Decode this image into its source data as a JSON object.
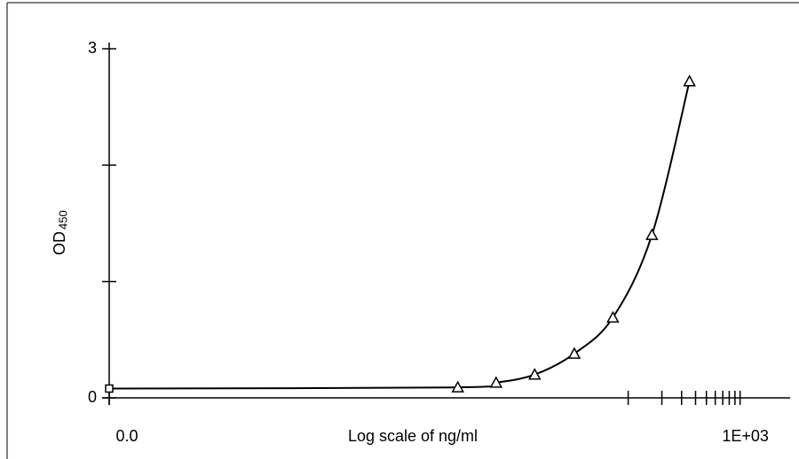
{
  "chart_data": {
    "type": "line",
    "x_label": "Log scale of ng/ml",
    "y_label": "OD",
    "y_label_sub": "450",
    "x_log": true,
    "xlim": [
      0.0023,
      2800
    ],
    "ylim": [
      0,
      3
    ],
    "yticks": [
      0,
      {
        "value": 1,
        "label": null
      },
      {
        "value": 2,
        "label": null
      },
      3
    ],
    "xticks": [
      {
        "value": 0.0023,
        "label": "0.0"
      },
      {
        "value": 100,
        "label": null
      },
      {
        "value": 200,
        "label": null
      },
      {
        "value": 300,
        "label": null
      },
      {
        "value": 400,
        "label": null
      },
      {
        "value": 500,
        "label": null
      },
      {
        "value": 600,
        "label": null
      },
      {
        "value": 700,
        "label": null
      },
      {
        "value": 800,
        "label": null
      },
      {
        "value": 900,
        "label": null
      },
      {
        "value": 1000,
        "label": "1E+03"
      }
    ],
    "series": [
      {
        "color": "#000000",
        "x": [
          0.0023,
          3,
          6.6,
          14.6,
          33,
          73,
          163,
          353
        ],
        "values": [
          0.08,
          0.09,
          0.13,
          0.2,
          0.38,
          0.69,
          1.4,
          2.72
        ],
        "markers": [
          "square",
          "triangle",
          "triangle",
          "triangle",
          "triangle",
          "triangle",
          "triangle",
          "triangle"
        ]
      }
    ]
  }
}
